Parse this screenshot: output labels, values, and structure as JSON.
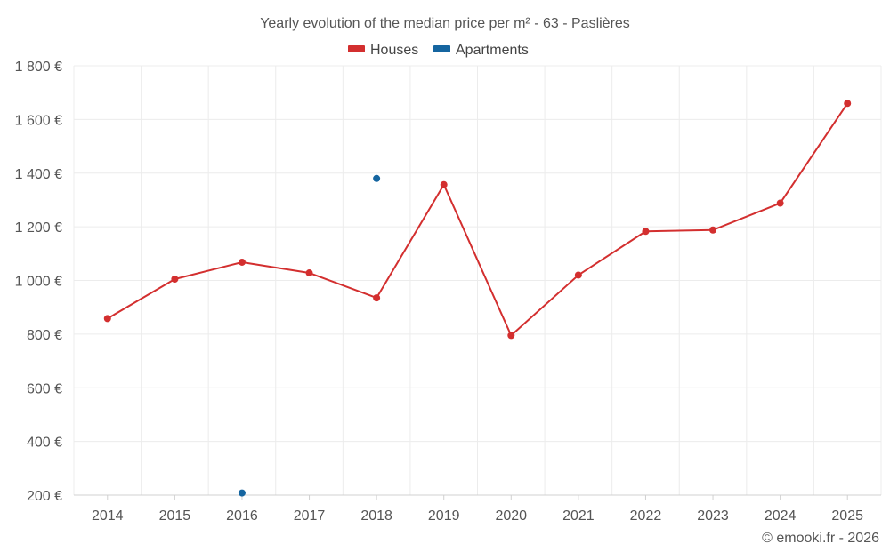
{
  "chart_data": {
    "type": "line",
    "title": "Yearly evolution of the median price per m² - 63 - Paslières",
    "xlabel": "",
    "ylabel": "",
    "categories": [
      "2014",
      "2015",
      "2016",
      "2017",
      "2018",
      "2019",
      "2020",
      "2021",
      "2022",
      "2023",
      "2024",
      "2025"
    ],
    "ylim": [
      200,
      1800
    ],
    "y_ticks": [
      200,
      400,
      600,
      800,
      1000,
      1200,
      1400,
      1600,
      1800
    ],
    "y_tick_labels": [
      "200 €",
      "400 €",
      "600 €",
      "800 €",
      "1 000 €",
      "1 200 €",
      "1 400 €",
      "1 600 €",
      "1 800 €"
    ],
    "grid": true,
    "legend_position": "top-center",
    "series": [
      {
        "name": "Houses",
        "color": "#d32f2f",
        "line": true,
        "values": [
          858,
          1005,
          1068,
          1028,
          935,
          1357,
          795,
          1020,
          1183,
          1188,
          1288,
          1660
        ]
      },
      {
        "name": "Apartments",
        "color": "#1565a0",
        "line": false,
        "values": [
          null,
          null,
          208,
          null,
          1380,
          null,
          null,
          null,
          null,
          null,
          null,
          null
        ]
      }
    ]
  },
  "footer": {
    "credit": "© emooki.fr - 2026"
  }
}
